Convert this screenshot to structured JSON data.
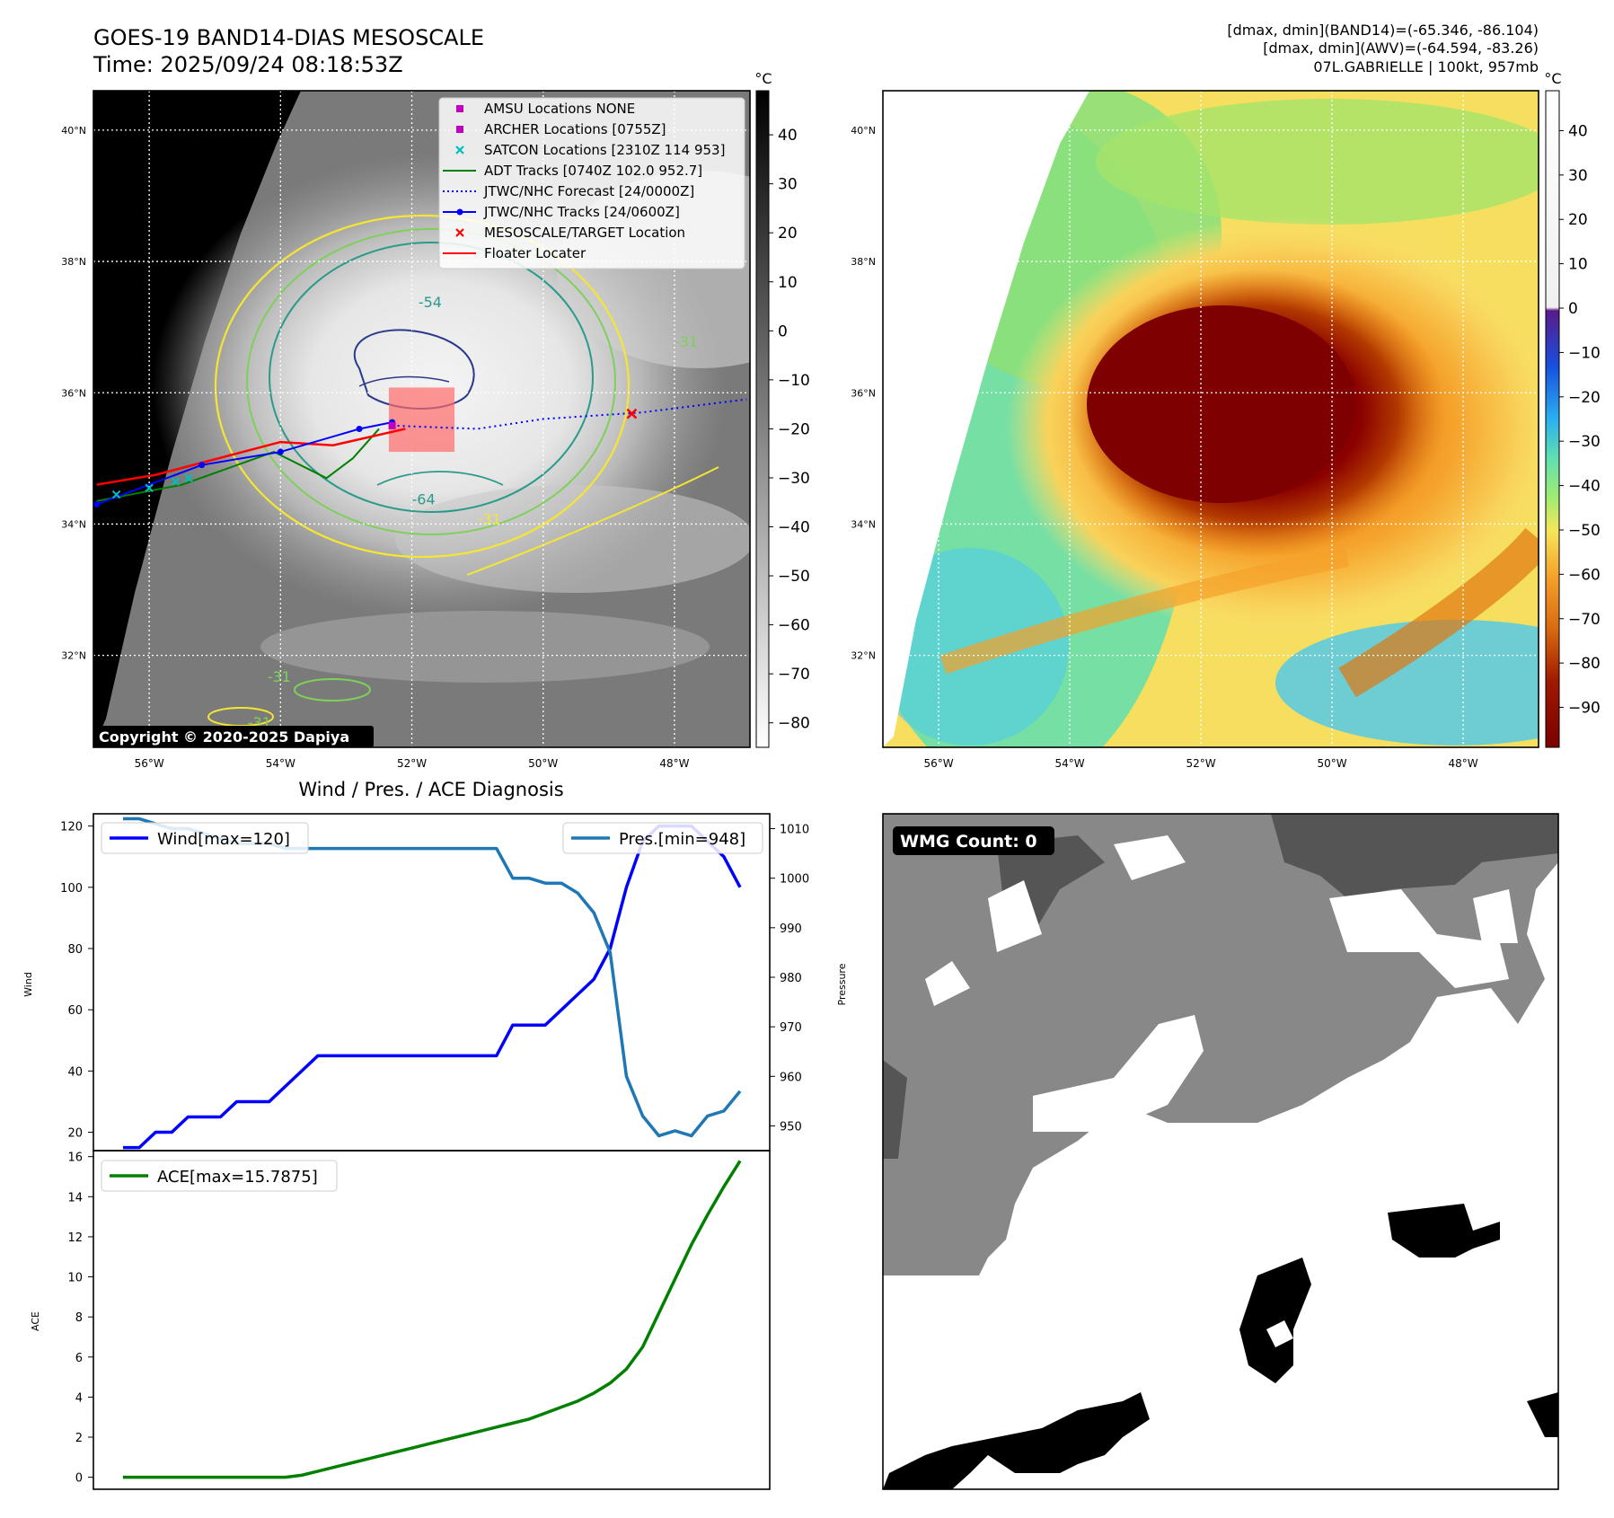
{
  "header": {
    "title_line1": "GOES-19 BAND14-DIAS MESOSCALE",
    "title_line2": "Time: 2025/09/24 08:18:53Z",
    "info_line1": "[dmax, dmin](BAND14)=(-65.346, -86.104)",
    "info_line2": "[dmax, dmin](AWV)=(-64.594, -83.26)",
    "info_line3": "07L.GABRIELLE | 100kt, 957mb"
  },
  "copyright": "Copyright © 2020-2025 Dapiya",
  "maps": {
    "lat_labels": [
      "40°N",
      "38°N",
      "36°N",
      "34°N",
      "32°N"
    ],
    "lat_values": [
      40,
      38,
      36,
      34,
      32
    ],
    "lon_labels": [
      "56°W",
      "54°W",
      "52°W",
      "50°W",
      "48°W"
    ],
    "lon_values": [
      -56,
      -54,
      -52,
      -50,
      -48
    ],
    "lat_range": [
      30.6,
      40.6
    ],
    "lon_range": [
      -56.85,
      -46.85
    ],
    "contour_labels": [
      "-54",
      "-31",
      "-64",
      "-31",
      "-31",
      "-31"
    ]
  },
  "legend": {
    "items": [
      {
        "label": "AMSU Locations NONE",
        "kind": "square",
        "color": "#bf00bf"
      },
      {
        "label": "ARCHER Locations [0755Z]",
        "kind": "square",
        "color": "#bf00bf"
      },
      {
        "label": "SATCON Locations [2310Z 114 953]",
        "kind": "x",
        "color": "#00bfbf"
      },
      {
        "label": "ADT Tracks [0740Z 102.0 952.7]",
        "kind": "line",
        "color": "#008000"
      },
      {
        "label": "JTWC/NHC Forecast [24/0000Z]",
        "kind": "dotted",
        "color": "#0000ff"
      },
      {
        "label": "JTWC/NHC Tracks [24/0600Z]",
        "kind": "line-dot",
        "color": "#0000ff"
      },
      {
        "label": "MESOSCALE/TARGET Location",
        "kind": "x",
        "color": "#ff0000"
      },
      {
        "label": "Floater Locater",
        "kind": "line",
        "color": "#ff0000"
      }
    ]
  },
  "colorbar_gray": {
    "unit": "°C",
    "ticks": [
      40,
      30,
      20,
      10,
      0,
      -10,
      -20,
      -30,
      -40,
      -50,
      -60,
      -70,
      -80
    ],
    "range": [
      -85,
      49
    ]
  },
  "colorbar_color": {
    "unit": "°C",
    "ticks": [
      40,
      30,
      20,
      10,
      0,
      -10,
      -20,
      -30,
      -40,
      -50,
      -60,
      -70,
      -80,
      -90
    ],
    "range": [
      -99,
      49
    ]
  },
  "tracks": {
    "jtwc": [
      [
        -56.8,
        34.3
      ],
      [
        -55.2,
        34.9
      ],
      [
        -54.0,
        35.1
      ],
      [
        -52.8,
        35.45
      ],
      [
        -52.3,
        35.55
      ]
    ],
    "forecast": [
      [
        -52.3,
        35.5
      ],
      [
        -51.0,
        35.45
      ],
      [
        -50.0,
        35.6
      ],
      [
        -48.5,
        35.7
      ],
      [
        -46.9,
        35.9
      ]
    ],
    "adt": [
      [
        -56.8,
        34.35
      ],
      [
        -55.5,
        34.6
      ],
      [
        -54.1,
        35.1
      ],
      [
        -53.3,
        34.7
      ],
      [
        -52.9,
        35.0
      ],
      [
        -52.5,
        35.45
      ]
    ],
    "floater": [
      [
        -56.8,
        34.6
      ],
      [
        -55.9,
        34.75
      ],
      [
        -54.0,
        35.25
      ],
      [
        -53.2,
        35.2
      ],
      [
        -52.1,
        35.45
      ]
    ],
    "satcon": [
      [
        -56.5,
        34.45
      ],
      [
        -56.0,
        34.55
      ],
      [
        -55.6,
        34.65
      ],
      [
        -55.4,
        34.7
      ]
    ],
    "target": [
      -48.65,
      35.68
    ],
    "archer": [
      -52.3,
      35.5
    ],
    "box": {
      "lon_min": -52.35,
      "lon_max": -51.35,
      "lat_min": 35.1,
      "lat_max": 36.08
    }
  },
  "chart_data": [
    {
      "type": "line",
      "title": "Wind / Pres. / ACE Diagnosis",
      "ylabel": "Wind",
      "ylabel_right": "Pressure",
      "ylim": [
        14,
        124
      ],
      "ylim_right": [
        945,
        1013
      ],
      "yticks": [
        20,
        40,
        60,
        80,
        100,
        120
      ],
      "yticks_right": [
        950,
        960,
        970,
        980,
        990,
        1000,
        1010
      ],
      "series": [
        {
          "name": "Wind[max=120]",
          "color": "#0000ff",
          "axis": "left",
          "values": [
            15,
            15,
            20,
            20,
            25,
            25,
            25,
            30,
            30,
            30,
            35,
            40,
            45,
            45,
            45,
            45,
            45,
            45,
            45,
            45,
            45,
            45,
            45,
            45,
            55,
            55,
            55,
            60,
            65,
            70,
            80,
            100,
            115,
            120,
            120,
            120,
            115,
            110,
            100
          ]
        },
        {
          "name": "Pres.[min=948]",
          "color": "#1f77b4",
          "axis": "right",
          "values": [
            1012,
            1012,
            1011,
            1010,
            1010,
            1009,
            1008,
            1007,
            1007,
            1007,
            1006,
            1006,
            1006,
            1006,
            1006,
            1006,
            1006,
            1006,
            1006,
            1006,
            1006,
            1006,
            1006,
            1006,
            1000,
            1000,
            999,
            999,
            997,
            993,
            985,
            960,
            952,
            948,
            949,
            948,
            952,
            953,
            957
          ]
        }
      ]
    },
    {
      "type": "line",
      "ylabel": "ACE",
      "ylim": [
        -0.6,
        16.3
      ],
      "yticks": [
        0,
        2,
        4,
        6,
        8,
        10,
        12,
        14,
        16
      ],
      "series": [
        {
          "name": "ACE[max=15.7875]",
          "color": "#008000",
          "values": [
            0,
            0,
            0,
            0,
            0,
            0,
            0,
            0,
            0,
            0,
            0,
            0.1,
            0.3,
            0.5,
            0.7,
            0.9,
            1.1,
            1.3,
            1.5,
            1.7,
            1.9,
            2.1,
            2.3,
            2.5,
            2.7,
            2.9,
            3.2,
            3.5,
            3.8,
            4.2,
            4.7,
            5.4,
            6.5,
            8.2,
            9.9,
            11.6,
            13.1,
            14.5,
            15.7875
          ]
        }
      ]
    }
  ],
  "wmg": {
    "label": "WMG Count: 0"
  }
}
